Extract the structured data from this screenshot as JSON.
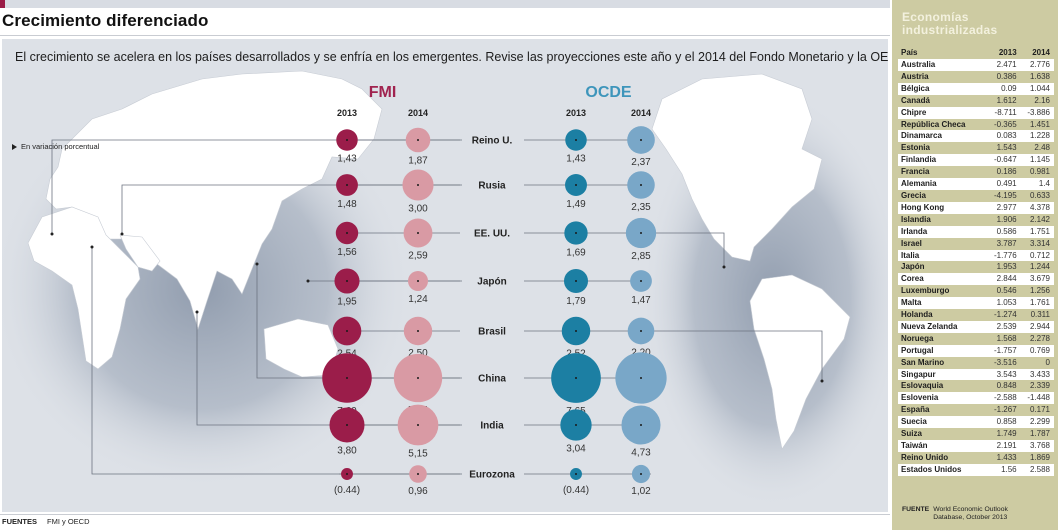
{
  "header": {
    "title": "Crecimiento diferenciado",
    "subtitle": "El crecimiento se acelera en los países desarrollados y se enfría en los emergentes. Revise las proyecciones este año y el 2014 del Fondo Monetario y la OECD.",
    "unit_note": "En variación porcentual"
  },
  "footer": {
    "label": "FUENTES",
    "value": "FMI y OECD"
  },
  "colors": {
    "fmi_2013": "#9b1d4a",
    "fmi_2014": "#d99aa4",
    "ocde_2013": "#1c7fa3",
    "ocde_2014": "#79a7c8",
    "fmi_title": "#a0234f",
    "ocde_title": "#3d95bb",
    "panel_bg": "#dde1e7",
    "sidebar_bg": "#cdcba2"
  },
  "chart_data": {
    "type": "bubble",
    "title": "Crecimiento diferenciado",
    "unit": "En variación porcentual",
    "groups": [
      {
        "name": "FMI",
        "years": [
          "2013",
          "2014"
        ]
      },
      {
        "name": "OCDE",
        "years": [
          "2013",
          "2014"
        ]
      }
    ],
    "categories": [
      "Reino U.",
      "Rusia",
      "EE. UU.",
      "Japón",
      "Brasil",
      "China",
      "India",
      "Eurozona"
    ],
    "series": [
      {
        "name": "FMI 2013",
        "values": [
          1.43,
          1.48,
          1.56,
          1.95,
          2.54,
          7.6,
          3.8,
          -0.44
        ],
        "labels": [
          "1,43",
          "1,48",
          "1,56",
          "1,95",
          "2,54",
          "7,60",
          "3,80",
          "(0.44)"
        ]
      },
      {
        "name": "FMI 2014",
        "values": [
          1.87,
          3.0,
          2.59,
          1.24,
          2.5,
          7.25,
          5.15,
          0.96
        ],
        "labels": [
          "1,87",
          "3,00",
          "2,59",
          "1,24",
          "2,50",
          "7,25",
          "5,15",
          "0,96"
        ]
      },
      {
        "name": "OCDE 2013",
        "values": [
          1.43,
          1.49,
          1.69,
          1.79,
          2.52,
          7.65,
          3.04,
          -0.44
        ],
        "labels": [
          "1,43",
          "1,49",
          "1,69",
          "1,79",
          "2,52",
          "7,65",
          "3,04",
          "(0.44)"
        ]
      },
      {
        "name": "OCDE 2014",
        "values": [
          2.37,
          2.35,
          2.85,
          1.47,
          2.2,
          8.15,
          4.73,
          1.02
        ],
        "labels": [
          "2,37",
          "2,35",
          "2,85",
          "1,47",
          "2,20",
          "8,15",
          "4,73",
          "1,02"
        ]
      }
    ]
  },
  "sidebar": {
    "title": "Economías industrializadas",
    "columns": [
      "País",
      "2013",
      "2014"
    ],
    "rows": [
      [
        "Australia",
        "2.471",
        "2.776"
      ],
      [
        "Austria",
        "0.386",
        "1.638"
      ],
      [
        "Bélgica",
        "0.09",
        "1.044"
      ],
      [
        "Canadá",
        "1.612",
        "2.16"
      ],
      [
        "Chipre",
        "-8.711",
        "-3.886"
      ],
      [
        "República Checa",
        "-0.365",
        "1.451"
      ],
      [
        "Dinamarca",
        "0.083",
        "1.228"
      ],
      [
        "Estonia",
        "1.543",
        "2.48"
      ],
      [
        "Finlandia",
        "-0.647",
        "1.145"
      ],
      [
        "Francia",
        "0.186",
        "0.981"
      ],
      [
        "Alemania",
        "0.491",
        "1.4"
      ],
      [
        "Grecia",
        "-4.195",
        "0.633"
      ],
      [
        "Hong Kong",
        "2.977",
        "4.378"
      ],
      [
        "Islandia",
        "1.906",
        "2.142"
      ],
      [
        "Irlanda",
        "0.586",
        "1.751"
      ],
      [
        "Israel",
        "3.787",
        "3.314"
      ],
      [
        "Italia",
        "-1.776",
        "0.712"
      ],
      [
        "Japón",
        "1.953",
        "1.244"
      ],
      [
        "Corea",
        "2.844",
        "3.679"
      ],
      [
        "Luxemburgo",
        "0.546",
        "1.256"
      ],
      [
        "Malta",
        "1.053",
        "1.761"
      ],
      [
        "Holanda",
        "-1.274",
        "0.311"
      ],
      [
        "Nueva Zelanda",
        "2.539",
        "2.944"
      ],
      [
        "Noruega",
        "1.568",
        "2.278"
      ],
      [
        "Portugal",
        "-1.757",
        "0.769"
      ],
      [
        "San Marino",
        "-3.516",
        "0"
      ],
      [
        "Singapur",
        "3.543",
        "3.433"
      ],
      [
        "Eslovaquia",
        "0.848",
        "2.339"
      ],
      [
        "Eslovenia",
        "-2.588",
        "-1.448"
      ],
      [
        "España",
        "-1.267",
        "0.171"
      ],
      [
        "Suecia",
        "0.858",
        "2.299"
      ],
      [
        "Suiza",
        "1.749",
        "1.787"
      ],
      [
        "Taiwán",
        "2.191",
        "3.768"
      ],
      [
        "Reino Unido",
        "1.433",
        "1.869"
      ],
      [
        "Estados Unidos",
        "1.56",
        "2.588"
      ]
    ],
    "source_label": "FUENTE",
    "source_value": "World Economic Outlook Database, October 2013"
  }
}
